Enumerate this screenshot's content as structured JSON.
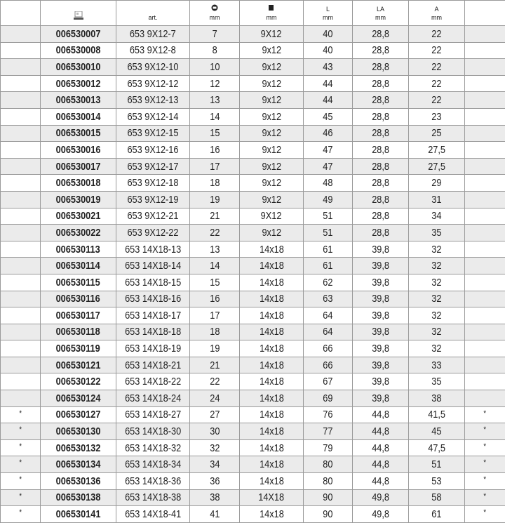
{
  "header": {
    "col_art": "art.",
    "col_hex_unit": "mm",
    "col_square_unit": "mm",
    "col_l": "L",
    "col_l_unit": "mm",
    "col_la": "LA",
    "col_la_unit": "mm",
    "col_a": "A",
    "col_a_unit": "mm",
    "icons": [
      "catalog-icon",
      "hex-socket-icon",
      "square-drive-icon"
    ]
  },
  "rows": [
    [
      "",
      "006530007",
      "653 9X12-7",
      "7",
      "9X12",
      "40",
      "28,8",
      "22",
      ""
    ],
    [
      "",
      "006530008",
      "653 9X12-8",
      "8",
      "9x12",
      "40",
      "28,8",
      "22",
      ""
    ],
    [
      "",
      "006530010",
      "653 9X12-10",
      "10",
      "9x12",
      "43",
      "28,8",
      "22",
      ""
    ],
    [
      "",
      "006530012",
      "653 9X12-12",
      "12",
      "9x12",
      "44",
      "28,8",
      "22",
      ""
    ],
    [
      "",
      "006530013",
      "653 9X12-13",
      "13",
      "9x12",
      "44",
      "28,8",
      "22",
      ""
    ],
    [
      "",
      "006530014",
      "653 9X12-14",
      "14",
      "9x12",
      "45",
      "28,8",
      "23",
      ""
    ],
    [
      "",
      "006530015",
      "653 9X12-15",
      "15",
      "9x12",
      "46",
      "28,8",
      "25",
      ""
    ],
    [
      "",
      "006530016",
      "653 9X12-16",
      "16",
      "9x12",
      "47",
      "28,8",
      "27,5",
      ""
    ],
    [
      "",
      "006530017",
      "653 9X12-17",
      "17",
      "9x12",
      "47",
      "28,8",
      "27,5",
      ""
    ],
    [
      "",
      "006530018",
      "653 9X12-18",
      "18",
      "9x12",
      "48",
      "28,8",
      "29",
      ""
    ],
    [
      "",
      "006530019",
      "653 9X12-19",
      "19",
      "9x12",
      "49",
      "28,8",
      "31",
      ""
    ],
    [
      "",
      "006530021",
      "653 9X12-21",
      "21",
      "9X12",
      "51",
      "28,8",
      "34",
      ""
    ],
    [
      "",
      "006530022",
      "653 9X12-22",
      "22",
      "9x12",
      "51",
      "28,8",
      "35",
      ""
    ],
    [
      "",
      "006530113",
      "653 14X18-13",
      "13",
      "14x18",
      "61",
      "39,8",
      "32",
      ""
    ],
    [
      "",
      "006530114",
      "653 14X18-14",
      "14",
      "14x18",
      "61",
      "39,8",
      "32",
      ""
    ],
    [
      "",
      "006530115",
      "653 14X18-15",
      "15",
      "14x18",
      "62",
      "39,8",
      "32",
      ""
    ],
    [
      "",
      "006530116",
      "653 14X18-16",
      "16",
      "14x18",
      "63",
      "39,8",
      "32",
      ""
    ],
    [
      "",
      "006530117",
      "653 14X18-17",
      "17",
      "14x18",
      "64",
      "39,8",
      "32",
      ""
    ],
    [
      "",
      "006530118",
      "653 14X18-18",
      "18",
      "14x18",
      "64",
      "39,8",
      "32",
      ""
    ],
    [
      "",
      "006530119",
      "653 14X18-19",
      "19",
      "14x18",
      "66",
      "39,8",
      "32",
      ""
    ],
    [
      "",
      "006530121",
      "653 14X18-21",
      "21",
      "14x18",
      "66",
      "39,8",
      "33",
      ""
    ],
    [
      "",
      "006530122",
      "653 14X18-22",
      "22",
      "14x18",
      "67",
      "39,8",
      "35",
      ""
    ],
    [
      "",
      "006530124",
      "653 14X18-24",
      "24",
      "14x18",
      "69",
      "39,8",
      "38",
      ""
    ],
    [
      "*",
      "006530127",
      "653 14X18-27",
      "27",
      "14x18",
      "76",
      "44,8",
      "41,5",
      "*"
    ],
    [
      "*",
      "006530130",
      "653 14X18-30",
      "30",
      "14x18",
      "77",
      "44,8",
      "45",
      "*"
    ],
    [
      "*",
      "006530132",
      "653 14X18-32",
      "32",
      "14x18",
      "79",
      "44,8",
      "47,5",
      "*"
    ],
    [
      "*",
      "006530134",
      "653 14X18-34",
      "34",
      "14x18",
      "80",
      "44,8",
      "51",
      "*"
    ],
    [
      "*",
      "006530136",
      "653 14X18-36",
      "36",
      "14x18",
      "80",
      "44,8",
      "53",
      "*"
    ],
    [
      "*",
      "006530138",
      "653 14X18-38",
      "38",
      "14X18",
      "90",
      "49,8",
      "58",
      "*"
    ],
    [
      "*",
      "006530141",
      "653 14X18-41",
      "41",
      "14x18",
      "90",
      "49,8",
      "61",
      "*"
    ]
  ]
}
